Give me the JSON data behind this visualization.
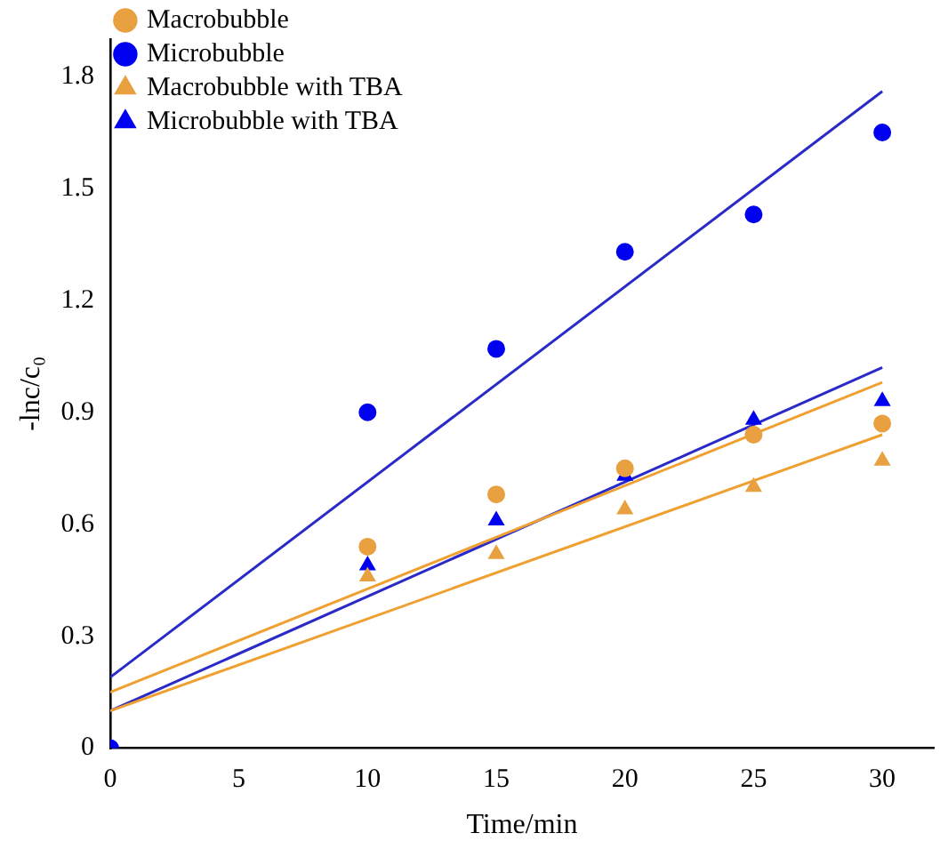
{
  "chart_data": {
    "type": "scatter",
    "xlabel": "Time/min",
    "ylabel": "-lnc/c₀",
    "xlim": [
      0,
      32
    ],
    "ylim": [
      0,
      1.9
    ],
    "xticks": [
      0,
      5,
      10,
      15,
      20,
      25,
      30
    ],
    "yticks": [
      0.0,
      0.3,
      0.6,
      0.9,
      1.2,
      1.5,
      1.8
    ],
    "grid": false,
    "legend": "top left",
    "series": [
      {
        "name": "Macrobubble",
        "color": "#e8a040",
        "marker": "circle",
        "x": [
          10,
          15,
          20,
          25,
          30
        ],
        "values": [
          0.54,
          0.68,
          0.75,
          0.84,
          0.87
        ]
      },
      {
        "name": "Microbubble",
        "color": "#0000f0",
        "marker": "circle",
        "x": [
          0,
          10,
          15,
          20,
          25,
          30
        ],
        "values": [
          0,
          0.9,
          1.07,
          1.33,
          1.43,
          1.65
        ]
      },
      {
        "name": "Macrobubble with TBA",
        "color": "#e8a040",
        "marker": "triangle",
        "x": [
          10,
          15,
          20,
          25,
          30
        ],
        "values": [
          0.46,
          0.52,
          0.64,
          0.7,
          0.77
        ]
      },
      {
        "name": "Microbubble with TBA",
        "color": "#0000f0",
        "marker": "triangle",
        "x": [
          10,
          15,
          20,
          25,
          30
        ],
        "values": [
          0.49,
          0.61,
          0.73,
          0.88,
          0.93
        ]
      },
      {
        "type": "line",
        "color": "#f0a030",
        "marker": "none",
        "x": [
          0,
          30
        ],
        "values": [
          0.15,
          0.98
        ]
      },
      {
        "type": "line",
        "color": "#2a2ac8",
        "marker": "none",
        "x": [
          0,
          30
        ],
        "values": [
          0.19,
          1.76
        ]
      },
      {
        "type": "line",
        "color": "#f0a030",
        "marker": "none",
        "x": [
          0,
          30
        ],
        "values": [
          0.1,
          0.84
        ]
      },
      {
        "type": "line",
        "color": "#2a2ac8",
        "marker": "none",
        "x": [
          0,
          30
        ],
        "values": [
          0.1,
          1.02
        ]
      }
    ]
  }
}
